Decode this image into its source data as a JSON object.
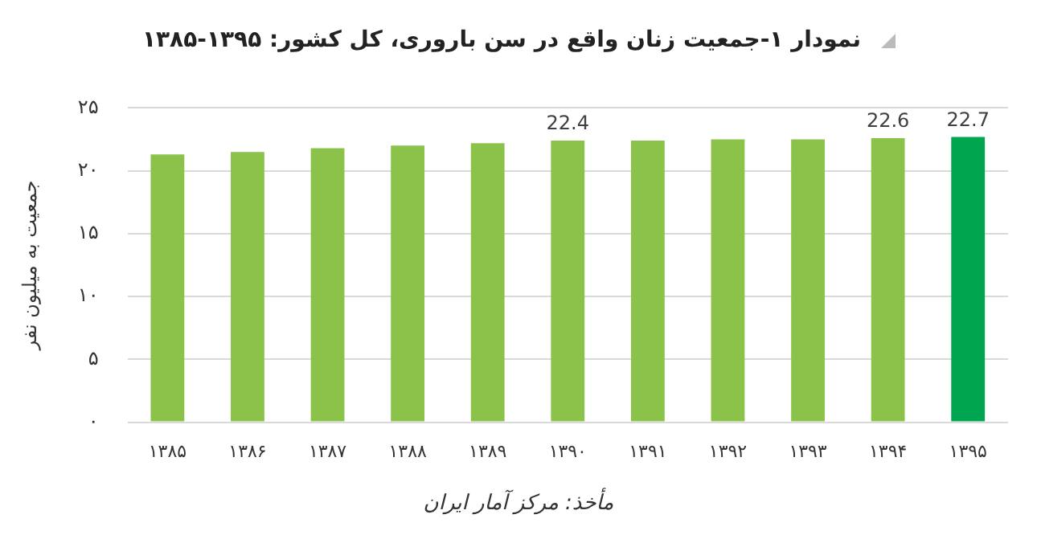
{
  "chart_data": {
    "type": "bar",
    "title": "نمودار ۱-جمعیت زنان واقع در سن باروری، کل کشور: ۱۳۹۵-۱۳۸۵",
    "ylabel": "جمعیت به میلیون نفر",
    "annotations": [
      "مأخذ: مرکز آمار ایران"
    ],
    "categories": [
      "۱۳۸۵",
      "۱۳۸۶",
      "۱۳۸۷",
      "۱۳۸۸",
      "۱۳۸۹",
      "۱۳۹۰",
      "۱۳۹۱",
      "۱۳۹۲",
      "۱۳۹۳",
      "۱۳۹۴",
      "۱۳۹۵"
    ],
    "values": [
      21.3,
      21.5,
      21.8,
      22.0,
      22.2,
      22.4,
      22.4,
      22.5,
      22.5,
      22.6,
      22.7
    ],
    "value_labels": [
      null,
      null,
      null,
      null,
      null,
      "22.4",
      null,
      null,
      null,
      "22.6",
      "22.7"
    ],
    "colors": [
      "#8bc34a",
      "#8bc34a",
      "#8bc34a",
      "#8bc34a",
      "#8bc34a",
      "#8bc34a",
      "#8bc34a",
      "#8bc34a",
      "#8bc34a",
      "#8bc34a",
      "#00a550"
    ],
    "ylim": [
      0,
      25
    ],
    "yticks": [
      {
        "value": 0,
        "label": "۰"
      },
      {
        "value": 5,
        "label": "۵"
      },
      {
        "value": 10,
        "label": "۱۰"
      },
      {
        "value": 15,
        "label": "۱۵"
      },
      {
        "value": 20,
        "label": "۲۰"
      },
      {
        "value": 25,
        "label": "۲۵"
      }
    ],
    "grid": "y",
    "legend": false
  }
}
